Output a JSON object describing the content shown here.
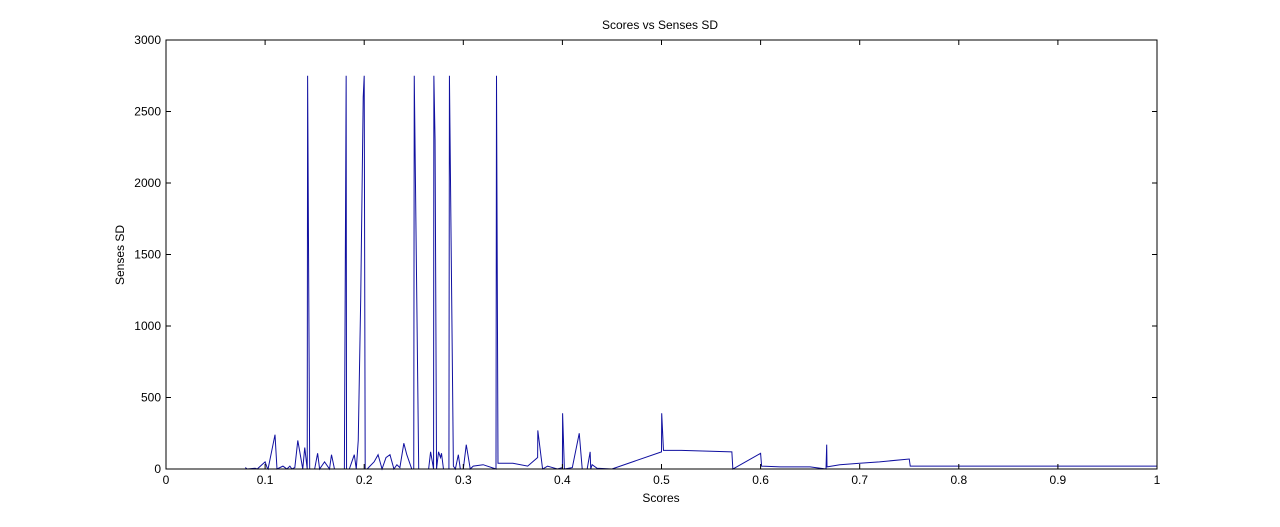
{
  "chart_data": {
    "type": "line",
    "title": "Scores vs Senses SD",
    "xlabel": "Scores",
    "ylabel": "Senses SD",
    "xlim": [
      0,
      1
    ],
    "ylim": [
      0,
      3000
    ],
    "x_ticks": [
      0,
      0.1,
      0.2,
      0.3,
      0.4,
      0.5,
      0.6,
      0.7,
      0.8,
      0.9,
      1
    ],
    "x_tick_labels": [
      "0",
      "0.1",
      "0.2",
      "0.3",
      "0.4",
      "0.5",
      "0.6",
      "0.7",
      "0.8",
      "0.9",
      "1"
    ],
    "y_ticks": [
      0,
      500,
      1000,
      1500,
      2000,
      2500,
      3000
    ],
    "y_tick_labels": [
      "0",
      "500",
      "1000",
      "1500",
      "2000",
      "2500",
      "3000"
    ],
    "grid": false,
    "line_color": "#1010a0",
    "series": [
      {
        "x": [
          0.08,
          0.082,
          0.09,
          0.092,
          0.1,
          0.102,
          0.103,
          0.11,
          0.112,
          0.118,
          0.12,
          0.122,
          0.125,
          0.127,
          0.13,
          0.133,
          0.138,
          0.14,
          0.1425,
          0.1429,
          0.145,
          0.15,
          0.153,
          0.155,
          0.16,
          0.165,
          0.167,
          0.17,
          0.175,
          0.18,
          0.1818,
          0.1822,
          0.185,
          0.19,
          0.192,
          0.194,
          0.1965,
          0.199,
          0.2,
          0.201,
          0.203,
          0.21,
          0.214,
          0.218,
          0.222,
          0.226,
          0.23,
          0.233,
          0.236,
          0.24,
          0.243,
          0.248,
          0.25,
          0.2505,
          0.255,
          0.26,
          0.265,
          0.267,
          0.27,
          0.2703,
          0.2715,
          0.273,
          0.275,
          0.277,
          0.278,
          0.28,
          0.2855,
          0.286,
          0.29,
          0.292,
          0.295,
          0.297,
          0.3,
          0.303,
          0.307,
          0.31,
          0.32,
          0.333,
          0.3335,
          0.335,
          0.35,
          0.365,
          0.375,
          0.3752,
          0.38,
          0.385,
          0.39,
          0.395,
          0.4,
          0.4002,
          0.402,
          0.41,
          0.417,
          0.42,
          0.425,
          0.428,
          0.4286,
          0.43,
          0.435,
          0.45,
          0.5,
          0.5002,
          0.502,
          0.52,
          0.571,
          0.572,
          0.6,
          0.601,
          0.62,
          0.65,
          0.666,
          0.6667,
          0.667,
          0.68,
          0.7,
          0.72,
          0.75,
          0.751,
          0.8,
          0.9,
          1.0
        ],
        "y": [
          10,
          0,
          5,
          0,
          50,
          10,
          0,
          240,
          0,
          20,
          10,
          0,
          20,
          0,
          10,
          200,
          0,
          150,
          0,
          2750,
          0,
          0,
          110,
          0,
          50,
          0,
          100,
          0,
          0,
          0,
          2750,
          0,
          0,
          100,
          0,
          200,
          1200,
          2600,
          2750,
          0,
          0,
          50,
          100,
          0,
          80,
          100,
          0,
          30,
          10,
          180,
          100,
          0,
          0,
          2750,
          0,
          0,
          0,
          120,
          0,
          2750,
          2300,
          0,
          120,
          80,
          110,
          0,
          0,
          2750,
          20,
          0,
          100,
          0,
          0,
          170,
          0,
          20,
          30,
          0,
          2750,
          40,
          40,
          20,
          80,
          270,
          0,
          20,
          10,
          0,
          10,
          390,
          0,
          10,
          250,
          0,
          0,
          120,
          0,
          30,
          5,
          0,
          120,
          390,
          130,
          130,
          120,
          0,
          110,
          20,
          15,
          15,
          0,
          170,
          15,
          30,
          40,
          50,
          70,
          20,
          20,
          20,
          20
        ]
      }
    ]
  }
}
